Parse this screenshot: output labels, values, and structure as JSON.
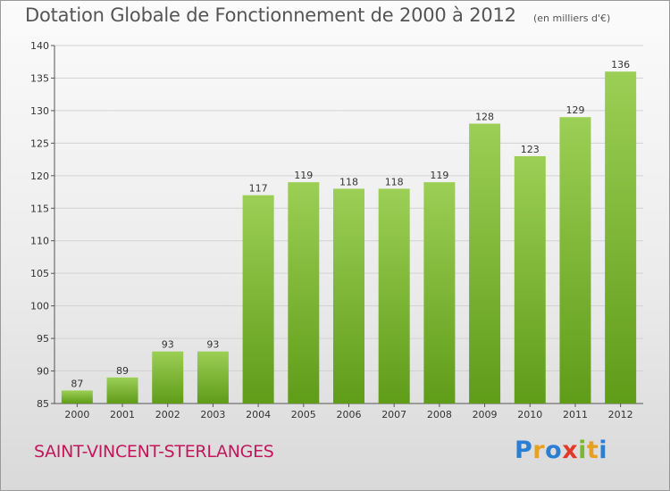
{
  "title": "Dotation Globale de Fonctionnement de 2000 à 2012",
  "unit_note": "(en milliers d'€)",
  "commune": "SAINT-VINCENT-STERLANGES",
  "logo": {
    "letters": [
      "P",
      "r",
      "o",
      "x",
      "i",
      "t",
      "i"
    ],
    "colors": [
      "#2a7fd4",
      "#e8a020",
      "#2a7fd4",
      "#e23a2a",
      "#7cb82f",
      "#e8a020",
      "#2a7fd4"
    ]
  },
  "colors": {
    "bar_top": "#9ccf55",
    "bar_bottom": "#5f9c18",
    "commune": "#c2185b"
  },
  "chart_data": {
    "type": "bar",
    "categories": [
      "2000",
      "2001",
      "2002",
      "2003",
      "2004",
      "2005",
      "2006",
      "2007",
      "2008",
      "2009",
      "2010",
      "2011",
      "2012"
    ],
    "values": [
      87,
      89,
      93,
      93,
      117,
      119,
      118,
      118,
      119,
      128,
      123,
      129,
      136
    ],
    "ylim": [
      85,
      140
    ],
    "yticks": [
      85,
      90,
      95,
      100,
      105,
      110,
      115,
      120,
      125,
      130,
      135,
      140
    ],
    "grid": true
  }
}
